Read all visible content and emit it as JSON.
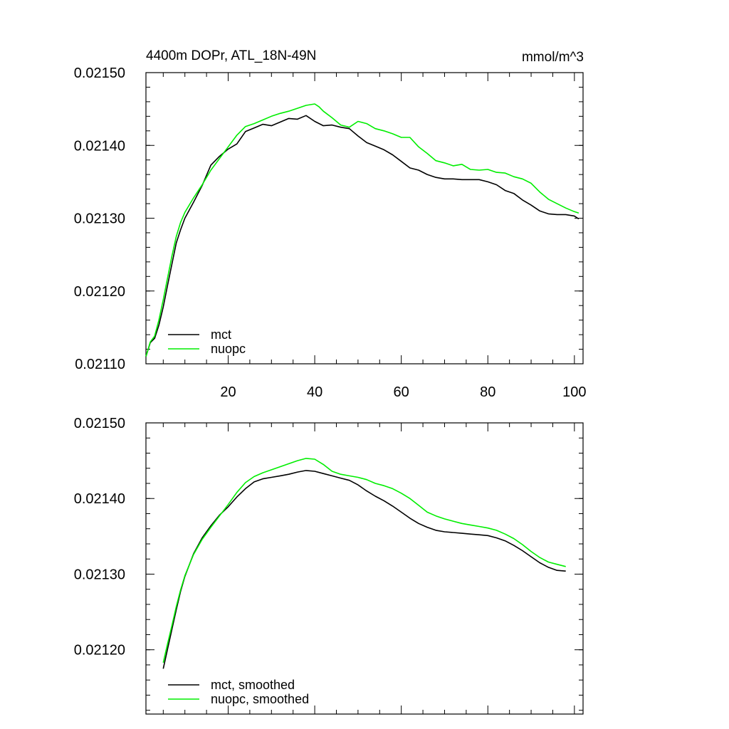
{
  "chart_data": [
    {
      "type": "line",
      "title": "4400m DOPr, ATL_18N-49N",
      "units": "mmol/m^3",
      "xlim": [
        1,
        102
      ],
      "ylim": [
        0.0211,
        0.0215
      ],
      "x_ticks": [
        20,
        40,
        60,
        80,
        100
      ],
      "x_tick_labels": [
        "20",
        "40",
        "60",
        "80",
        "100"
      ],
      "y_ticks": [
        0.0211,
        0.0212,
        0.0213,
        0.0214,
        0.0215
      ],
      "y_tick_labels": [
        "0.02110",
        "0.02120",
        "0.02130",
        "0.02140",
        "0.02150"
      ],
      "legend": {
        "placement": "bottom-left"
      },
      "series": [
        {
          "name": "mct",
          "color": "#000000",
          "x": [
            1,
            2,
            3,
            4,
            5,
            6,
            7,
            8,
            9,
            10,
            12,
            14,
            16,
            18,
            20,
            22,
            24,
            26,
            28,
            30,
            32,
            34,
            36,
            38,
            40,
            42,
            44,
            46,
            48,
            50,
            52,
            54,
            56,
            58,
            60,
            62,
            64,
            66,
            68,
            70,
            72,
            74,
            76,
            78,
            80,
            82,
            84,
            86,
            88,
            90,
            92,
            94,
            96,
            98,
            100,
            101
          ],
          "values": [
            0.02111,
            0.021129,
            0.021135,
            0.021153,
            0.021178,
            0.021208,
            0.021237,
            0.021266,
            0.021284,
            0.0213,
            0.021322,
            0.021345,
            0.021373,
            0.021385,
            0.021395,
            0.021402,
            0.021419,
            0.021424,
            0.021429,
            0.021427,
            0.021432,
            0.021437,
            0.021436,
            0.021441,
            0.021433,
            0.021427,
            0.021428,
            0.021425,
            0.021423,
            0.021413,
            0.021404,
            0.021399,
            0.021394,
            0.021387,
            0.021378,
            0.021369,
            0.021366,
            0.02136,
            0.021356,
            0.021354,
            0.021354,
            0.021353,
            0.021353,
            0.021353,
            0.02135,
            0.021346,
            0.021338,
            0.021334,
            0.021325,
            0.021318,
            0.02131,
            0.021306,
            0.021305,
            0.021305,
            0.021303,
            0.021299
          ]
        },
        {
          "name": "nuopc",
          "color": "#00ee00",
          "x": [
            1,
            2,
            3,
            4,
            5,
            6,
            7,
            8,
            9,
            10,
            12,
            14,
            16,
            18,
            20,
            22,
            24,
            26,
            28,
            30,
            32,
            34,
            36,
            38,
            40,
            41,
            42,
            44,
            46,
            48,
            50,
            52,
            54,
            56,
            58,
            60,
            62,
            64,
            66,
            68,
            70,
            72,
            74,
            76,
            78,
            80,
            82,
            84,
            86,
            88,
            90,
            92,
            94,
            96,
            98,
            100,
            101
          ],
          "values": [
            0.02111,
            0.02113,
            0.021138,
            0.02116,
            0.021188,
            0.021218,
            0.021248,
            0.021275,
            0.021294,
            0.021308,
            0.021328,
            0.021346,
            0.021366,
            0.021382,
            0.021398,
            0.021414,
            0.021426,
            0.02143,
            0.021435,
            0.02144,
            0.021444,
            0.021447,
            0.021451,
            0.021455,
            0.021457,
            0.021453,
            0.021447,
            0.021438,
            0.021428,
            0.021425,
            0.021433,
            0.02143,
            0.021423,
            0.02142,
            0.021416,
            0.021411,
            0.021411,
            0.021398,
            0.021389,
            0.021379,
            0.021376,
            0.021372,
            0.021374,
            0.021367,
            0.021366,
            0.021367,
            0.021363,
            0.021362,
            0.021357,
            0.021354,
            0.021348,
            0.021336,
            0.021326,
            0.02132,
            0.021314,
            0.021309,
            0.021307
          ]
        }
      ]
    },
    {
      "type": "line",
      "xlim": [
        1,
        102
      ],
      "ylim": [
        0.021115,
        0.0215
      ],
      "x_ticks": [
        20,
        40,
        60,
        80,
        100
      ],
      "y_ticks": [
        0.0212,
        0.0213,
        0.0214,
        0.0215
      ],
      "y_tick_labels": [
        "0.02120",
        "0.02130",
        "0.02140",
        "0.02150"
      ],
      "legend": {
        "placement": "bottom-left"
      },
      "series": [
        {
          "name": "mct, smoothed",
          "color": "#000000",
          "x": [
            5,
            6,
            7,
            8,
            9,
            10,
            12,
            14,
            16,
            18,
            20,
            22,
            24,
            26,
            28,
            30,
            32,
            34,
            36,
            38,
            40,
            42,
            44,
            46,
            48,
            50,
            52,
            54,
            56,
            58,
            60,
            62,
            64,
            66,
            68,
            70,
            72,
            74,
            76,
            78,
            80,
            82,
            84,
            86,
            88,
            90,
            92,
            94,
            96,
            98
          ],
          "values": [
            0.021175,
            0.021201,
            0.021227,
            0.021253,
            0.021277,
            0.021297,
            0.021327,
            0.021348,
            0.021364,
            0.021378,
            0.021389,
            0.021402,
            0.021413,
            0.021422,
            0.021426,
            0.021428,
            0.02143,
            0.021432,
            0.021435,
            0.021437,
            0.021436,
            0.021433,
            0.02143,
            0.021427,
            0.021424,
            0.021418,
            0.02141,
            0.021403,
            0.021397,
            0.02139,
            0.021382,
            0.021374,
            0.021367,
            0.021362,
            0.021358,
            0.021356,
            0.021355,
            0.021354,
            0.021353,
            0.021352,
            0.021351,
            0.021348,
            0.021344,
            0.021338,
            0.021331,
            0.021323,
            0.021315,
            0.021309,
            0.021305,
            0.021304
          ]
        },
        {
          "name": "nuopc, smoothed",
          "color": "#00ee00",
          "x": [
            5,
            6,
            7,
            8,
            9,
            10,
            12,
            14,
            16,
            18,
            20,
            22,
            24,
            26,
            28,
            30,
            32,
            34,
            36,
            38,
            40,
            42,
            44,
            46,
            48,
            50,
            52,
            54,
            56,
            58,
            60,
            62,
            64,
            66,
            68,
            70,
            72,
            74,
            76,
            78,
            80,
            82,
            84,
            86,
            88,
            90,
            92,
            94,
            96,
            98
          ],
          "values": [
            0.021183,
            0.021208,
            0.021232,
            0.021257,
            0.021279,
            0.021298,
            0.021326,
            0.021346,
            0.021362,
            0.021377,
            0.021392,
            0.021408,
            0.021421,
            0.021429,
            0.021434,
            0.021438,
            0.021442,
            0.021446,
            0.02145,
            0.021453,
            0.021452,
            0.021445,
            0.021436,
            0.021432,
            0.02143,
            0.021428,
            0.021425,
            0.02142,
            0.021417,
            0.021413,
            0.021407,
            0.0214,
            0.021391,
            0.021382,
            0.021377,
            0.021373,
            0.02137,
            0.021367,
            0.021365,
            0.021363,
            0.021361,
            0.021358,
            0.021353,
            0.021347,
            0.021339,
            0.02133,
            0.021322,
            0.021316,
            0.021313,
            0.02131
          ]
        }
      ]
    }
  ]
}
